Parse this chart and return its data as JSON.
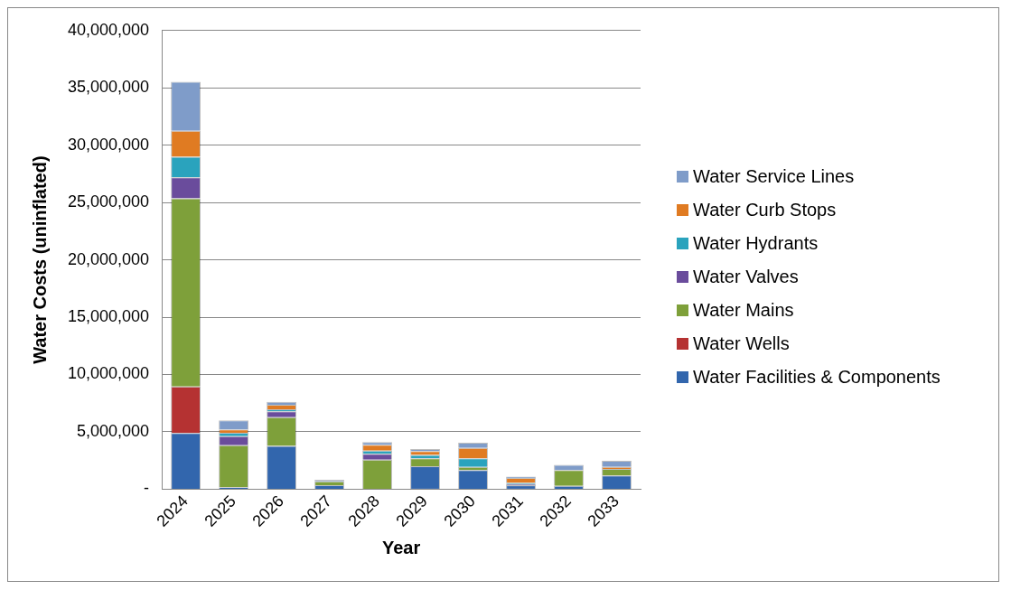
{
  "chart_data": {
    "type": "bar",
    "stacked": true,
    "xlabel": "Year",
    "ylabel": "Water Costs (uninflated)",
    "categories": [
      "2024",
      "2025",
      "2026",
      "2027",
      "2028",
      "2029",
      "2030",
      "2031",
      "2032",
      "2033"
    ],
    "series": [
      {
        "name": "Water Facilities & Components",
        "color": "#3266ad",
        "values": [
          4900000,
          170000,
          3770000,
          340000,
          0,
          2000000,
          1660000,
          340000,
          290000,
          1200000
        ]
      },
      {
        "name": "Water Wells",
        "color": "#b53232",
        "values": [
          4060000,
          0,
          0,
          0,
          0,
          0,
          0,
          0,
          0,
          0
        ]
      },
      {
        "name": "Water Mains",
        "color": "#7ea03a",
        "values": [
          16400000,
          3660000,
          2510000,
          340000,
          2570000,
          690000,
          290000,
          0,
          1370000,
          570000
        ]
      },
      {
        "name": "Water Valves",
        "color": "#6a4c9c",
        "values": [
          1840000,
          800000,
          510000,
          0,
          510000,
          0,
          0,
          110000,
          0,
          0
        ]
      },
      {
        "name": "Water Hydrants",
        "color": "#2aa3bd",
        "values": [
          1790000,
          290000,
          170000,
          null,
          290000,
          290000,
          740000,
          120000,
          0,
          0
        ]
      },
      {
        "name": "Water Curb Stops",
        "color": "#e07b22",
        "values": [
          2270000,
          290000,
          400000,
          null,
          510000,
          340000,
          910000,
          400000,
          0,
          170000
        ]
      },
      {
        "name": "Water Service Lines",
        "color": "#7f9cc9",
        "values": [
          4270000,
          800000,
          260000,
          140000,
          230000,
          170000,
          460000,
          120000,
          460000,
          540000
        ]
      }
    ],
    "ylim": [
      0,
      40000000
    ],
    "yticks": [
      {
        "value": 0,
        "label": "-"
      },
      {
        "value": 5000000,
        "label": "5,000,000"
      },
      {
        "value": 10000000,
        "label": "10,000,000"
      },
      {
        "value": 15000000,
        "label": "15,000,000"
      },
      {
        "value": 20000000,
        "label": "20,000,000"
      },
      {
        "value": 25000000,
        "label": "25,000,000"
      },
      {
        "value": 30000000,
        "label": "30,000,000"
      },
      {
        "value": 35000000,
        "label": "35,000,000"
      },
      {
        "value": 40000000,
        "label": "40,000,000"
      }
    ],
    "grid": "y",
    "legend": "right"
  }
}
